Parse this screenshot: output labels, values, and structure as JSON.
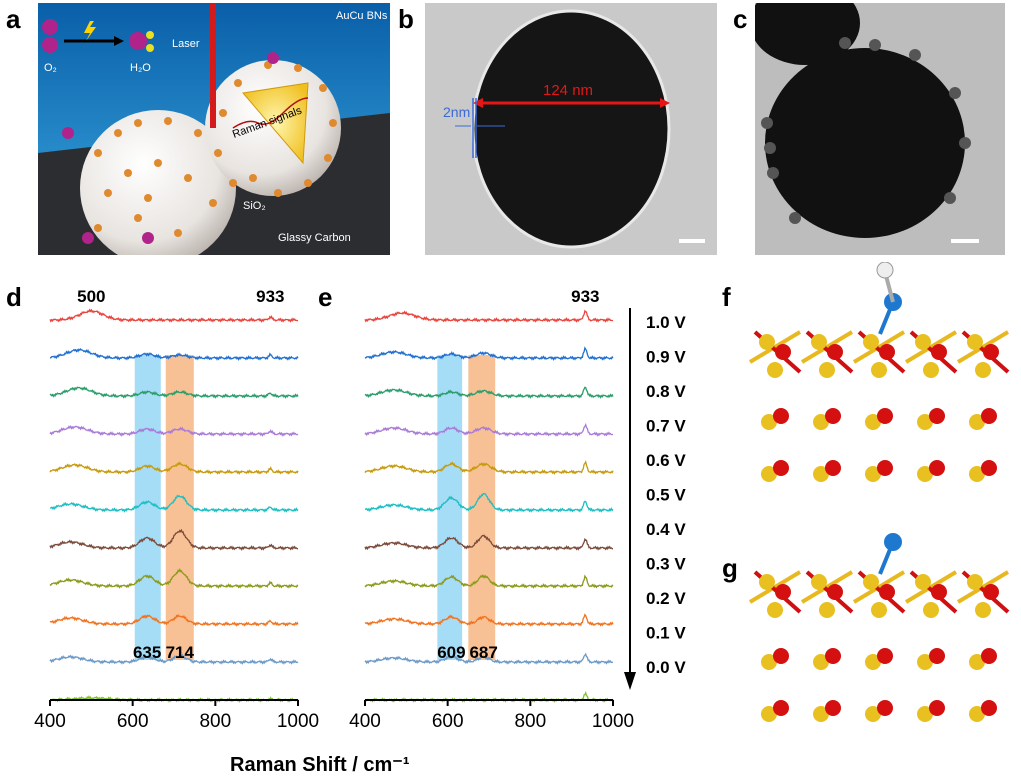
{
  "panels": {
    "a": {
      "letter": "a",
      "labels": {
        "reaction_o2": "O₂",
        "reaction_h2o": "H₂O",
        "laser": "Laser",
        "nanoparticles": "AuCu BNs",
        "raman": "Raman signals",
        "sio2": "SiO₂",
        "substrate": "Glassy Carbon"
      }
    },
    "b": {
      "letter": "b",
      "size_label": "124 nm",
      "shell_label": "2nm"
    },
    "c": {
      "letter": "c"
    },
    "f": {
      "letter": "f"
    },
    "g": {
      "letter": "g"
    }
  },
  "colors": {
    "series": [
      "#e8453c",
      "#1f6fd1",
      "#2a9d6a",
      "#a97ad8",
      "#c79a0c",
      "#1bbfc4",
      "#7a4a3a",
      "#8c9a1a",
      "#f07420",
      "#6b9ac8",
      "#7dc22a"
    ],
    "highlight_blue": "#8fd3f4",
    "highlight_orange": "#f6b27a"
  },
  "chart_data": [
    {
      "id": "d",
      "letter": "d",
      "type": "line",
      "xlabel": "Raman Shift / cm⁻¹",
      "ylabel": "",
      "xlim": [
        400,
        1000
      ],
      "xticks": [
        400,
        600,
        800,
        1000
      ],
      "annotations": [
        {
          "text": "500",
          "x": 500,
          "where": "top"
        },
        {
          "text": "933",
          "x": 933,
          "where": "top"
        },
        {
          "text": "635",
          "x": 635,
          "where": "bottom"
        },
        {
          "text": "714",
          "x": 714,
          "where": "bottom"
        }
      ],
      "bands": [
        {
          "from": 605,
          "to": 668,
          "color": "blue"
        },
        {
          "from": 680,
          "to": 748,
          "color": "orange"
        }
      ],
      "series": [
        {
          "name": "1.0 V",
          "peaks": [
            [
              500,
              9,
              28
            ],
            [
              933,
              3,
              4
            ]
          ]
        },
        {
          "name": "0.9 V",
          "peaks": [
            [
              470,
              8,
              30
            ],
            [
              635,
              4,
              18
            ],
            [
              714,
              3,
              18
            ],
            [
              933,
              3,
              4
            ]
          ]
        },
        {
          "name": "0.8 V",
          "peaks": [
            [
              470,
              8,
              30
            ],
            [
              635,
              4,
              18
            ],
            [
              714,
              4,
              18
            ],
            [
              933,
              3,
              4
            ]
          ]
        },
        {
          "name": "0.7 V",
          "peaks": [
            [
              460,
              7,
              30
            ],
            [
              635,
              5,
              18
            ],
            [
              714,
              5,
              18
            ],
            [
              933,
              3,
              4
            ]
          ]
        },
        {
          "name": "0.6 V",
          "peaks": [
            [
              460,
              7,
              30
            ],
            [
              635,
              6,
              18
            ],
            [
              714,
              8,
              18
            ],
            [
              933,
              3,
              4
            ]
          ]
        },
        {
          "name": "0.5 V",
          "peaks": [
            [
              450,
              6,
              30
            ],
            [
              635,
              8,
              18
            ],
            [
              714,
              14,
              16
            ],
            [
              933,
              3,
              4
            ]
          ]
        },
        {
          "name": "0.4 V",
          "peaks": [
            [
              450,
              6,
              30
            ],
            [
              635,
              10,
              18
            ],
            [
              714,
              17,
              16
            ],
            [
              933,
              3,
              4
            ]
          ]
        },
        {
          "name": "0.3 V",
          "peaks": [
            [
              450,
              6,
              30
            ],
            [
              635,
              10,
              18
            ],
            [
              714,
              15,
              16
            ],
            [
              933,
              3,
              4
            ]
          ]
        },
        {
          "name": "0.2 V",
          "peaks": [
            [
              450,
              6,
              30
            ],
            [
              635,
              8,
              18
            ],
            [
              714,
              8,
              16
            ],
            [
              933,
              3,
              4
            ]
          ]
        },
        {
          "name": "0.1 V",
          "peaks": [
            [
              450,
              5,
              30
            ],
            [
              635,
              5,
              18
            ],
            [
              714,
              6,
              16
            ],
            [
              933,
              3,
              4
            ]
          ]
        },
        {
          "name": "0.0 V",
          "peaks": [
            [
              500,
              2,
              40
            ],
            [
              933,
              1,
              4
            ]
          ]
        }
      ]
    },
    {
      "id": "e",
      "letter": "e",
      "type": "line",
      "xlabel": "Raman Shift / cm⁻¹",
      "xlim": [
        400,
        1000
      ],
      "xticks": [
        400,
        600,
        800,
        1000
      ],
      "annotations": [
        {
          "text": "933",
          "x": 933,
          "where": "top"
        },
        {
          "text": "609",
          "x": 609,
          "where": "bottom"
        },
        {
          "text": "687",
          "x": 687,
          "where": "bottom"
        }
      ],
      "bands": [
        {
          "from": 575,
          "to": 635,
          "color": "blue"
        },
        {
          "from": 650,
          "to": 715,
          "color": "orange"
        }
      ],
      "series": [
        {
          "name": "1.0 V",
          "peaks": [
            [
              490,
              7,
              30
            ],
            [
              933,
              9,
              4
            ]
          ]
        },
        {
          "name": "0.9 V",
          "peaks": [
            [
              470,
              6,
              30
            ],
            [
              609,
              4,
              16
            ],
            [
              687,
              5,
              18
            ],
            [
              933,
              9,
              4
            ]
          ]
        },
        {
          "name": "0.8 V",
          "peaks": [
            [
              470,
              6,
              30
            ],
            [
              609,
              4,
              16
            ],
            [
              687,
              5,
              18
            ],
            [
              933,
              9,
              4
            ]
          ]
        },
        {
          "name": "0.7 V",
          "peaks": [
            [
              470,
              6,
              30
            ],
            [
              609,
              6,
              16
            ],
            [
              687,
              6,
              18
            ],
            [
              933,
              9,
              4
            ]
          ]
        },
        {
          "name": "0.6 V",
          "peaks": [
            [
              470,
              6,
              30
            ],
            [
              609,
              8,
              16
            ],
            [
              687,
              8,
              18
            ],
            [
              933,
              9,
              4
            ]
          ]
        },
        {
          "name": "0.5 V",
          "peaks": [
            [
              470,
              5,
              30
            ],
            [
              609,
              12,
              16
            ],
            [
              687,
              16,
              14
            ],
            [
              933,
              9,
              4
            ]
          ]
        },
        {
          "name": "0.4 V",
          "peaks": [
            [
              470,
              5,
              30
            ],
            [
              609,
              10,
              16
            ],
            [
              687,
              12,
              14
            ],
            [
              933,
              9,
              4
            ]
          ]
        },
        {
          "name": "0.3 V",
          "peaks": [
            [
              470,
              5,
              30
            ],
            [
              609,
              9,
              16
            ],
            [
              687,
              10,
              14
            ],
            [
              933,
              9,
              4
            ]
          ]
        },
        {
          "name": "0.2 V",
          "peaks": [
            [
              470,
              5,
              30
            ],
            [
              609,
              7,
              16
            ],
            [
              687,
              7,
              14
            ],
            [
              933,
              9,
              4
            ]
          ]
        },
        {
          "name": "0.1 V",
          "peaks": [
            [
              470,
              4,
              30
            ],
            [
              609,
              5,
              16
            ],
            [
              687,
              5,
              14
            ],
            [
              933,
              8,
              4
            ]
          ]
        },
        {
          "name": "0.0 V",
          "peaks": [
            [
              933,
              6,
              4
            ]
          ]
        }
      ]
    }
  ],
  "potential_labels": [
    "1.0 V",
    "0.9 V",
    "0.8 V",
    "0.7 V",
    "0.6 V",
    "0.5 V",
    "0.4 V",
    "0.3 V",
    "0.2 V",
    "0.1 V",
    "0.0 V"
  ]
}
